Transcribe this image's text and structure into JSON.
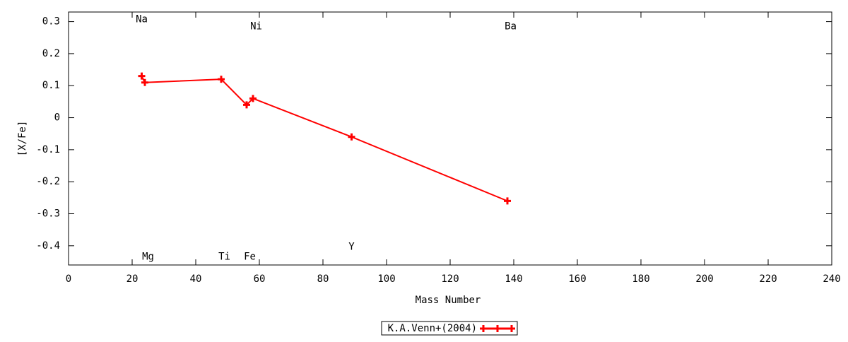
{
  "chart_data": {
    "type": "line",
    "x_label": "Mass Number",
    "y_label": "[X/Fe]",
    "xlim": [
      0,
      240
    ],
    "xticks": [
      0,
      20,
      40,
      60,
      80,
      100,
      120,
      140,
      160,
      180,
      200,
      220,
      240
    ],
    "ylim": [
      -0.46,
      0.33
    ],
    "yticks": [
      -0.4,
      -0.3,
      -0.2,
      -0.1,
      0,
      0.1,
      0.2,
      0.3
    ],
    "grid": false,
    "legend": "bottom",
    "series": [
      {
        "name": "K.A.Venn+(2004)",
        "color": "#ff0000",
        "x": [
          23,
          24,
          48,
          56,
          58,
          89,
          138
        ],
        "values": [
          0.13,
          0.11,
          0.12,
          0.04,
          0.06,
          -0.06,
          -0.26
        ]
      }
    ],
    "annotations": [
      {
        "text": "Na",
        "x": 23,
        "y": 0.307
      },
      {
        "text": "Ni",
        "x": 59,
        "y": 0.285
      },
      {
        "text": "Ba",
        "x": 139,
        "y": 0.285
      },
      {
        "text": "Mg",
        "x": 25,
        "y": -0.435
      },
      {
        "text": "Ti",
        "x": 49,
        "y": -0.435
      },
      {
        "text": "Fe",
        "x": 57,
        "y": -0.435
      },
      {
        "text": "Y",
        "x": 89,
        "y": -0.404
      }
    ]
  }
}
